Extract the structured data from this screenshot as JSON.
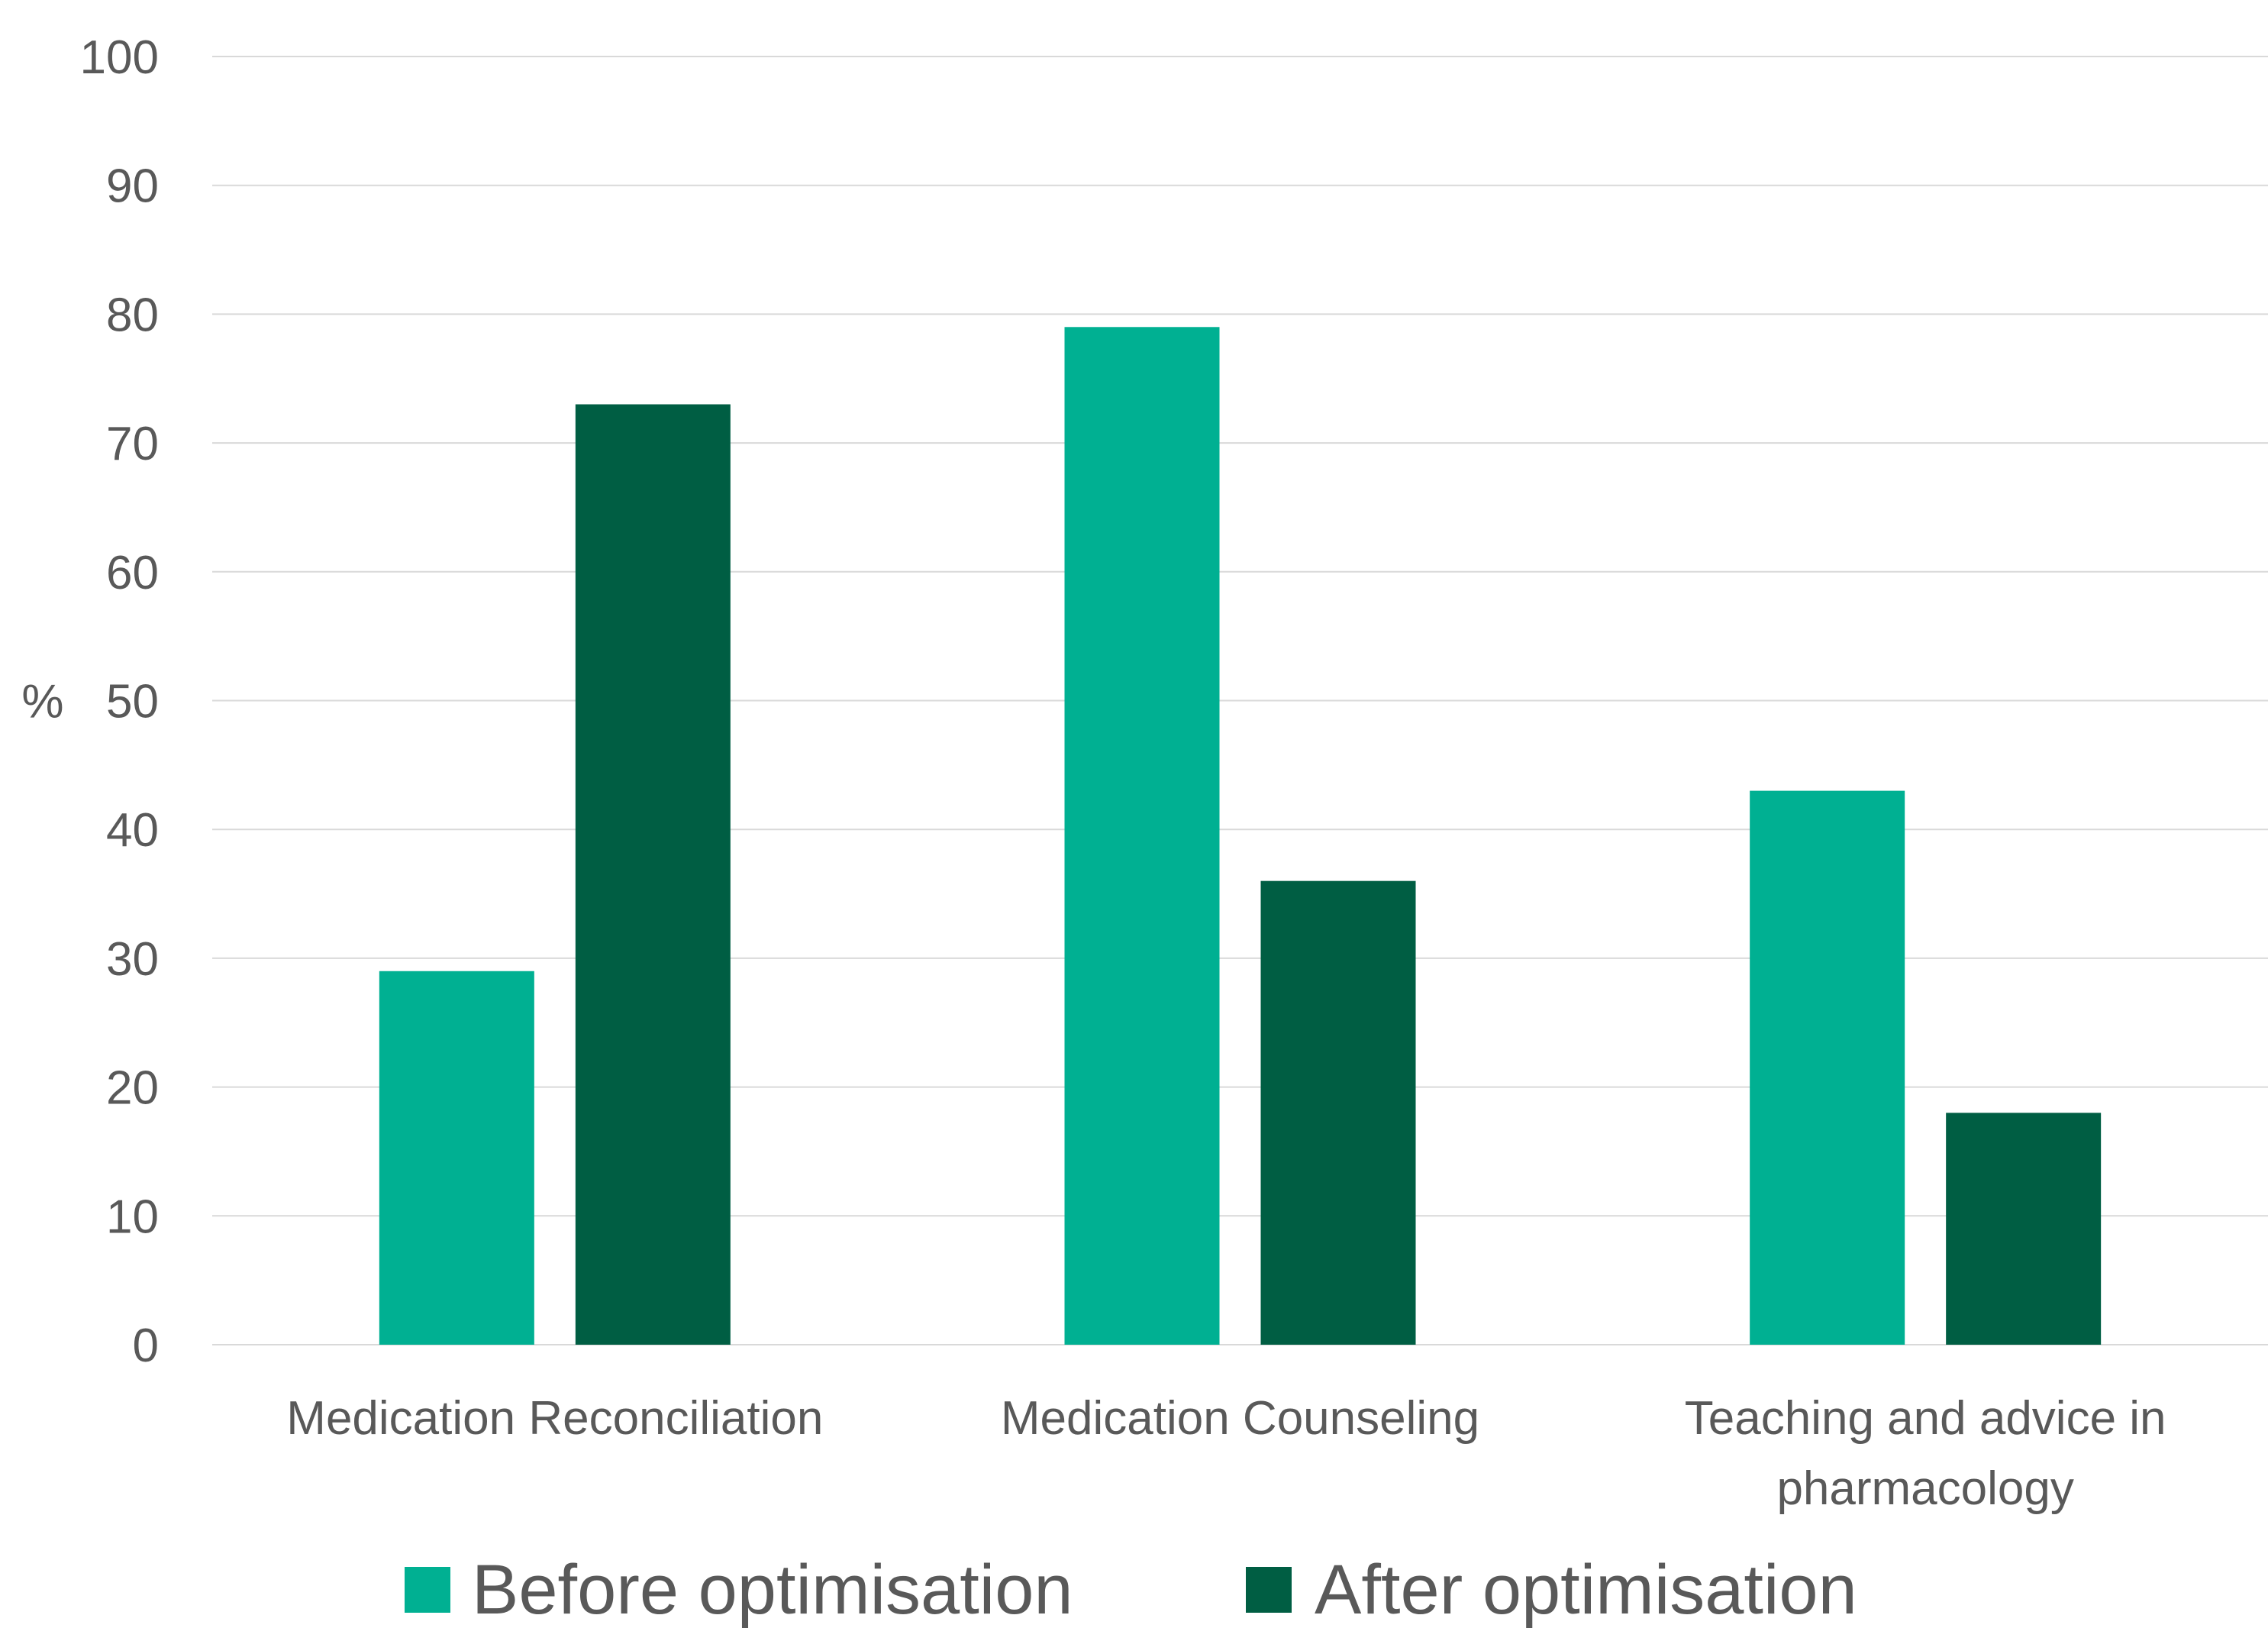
{
  "chart_data": {
    "type": "bar",
    "categories": [
      [
        "Medication Reconciliation"
      ],
      [
        "Medication Counseling"
      ],
      [
        "Teaching and advice in",
        "pharmacology"
      ]
    ],
    "series": [
      {
        "name": "Before optimisation",
        "values": [
          29,
          79,
          43
        ],
        "color": "#00B092"
      },
      {
        "name": "After optimisation",
        "values": [
          73,
          36,
          18
        ],
        "color": "#005E43"
      }
    ],
    "ylabel": "%",
    "ylim": [
      0,
      100
    ],
    "yticks": [
      0,
      10,
      20,
      30,
      40,
      50,
      60,
      70,
      80,
      90,
      100
    ],
    "grid": true,
    "legend": "bottom",
    "gridline_color": "#D9D9D9",
    "text_color": "#595959"
  }
}
